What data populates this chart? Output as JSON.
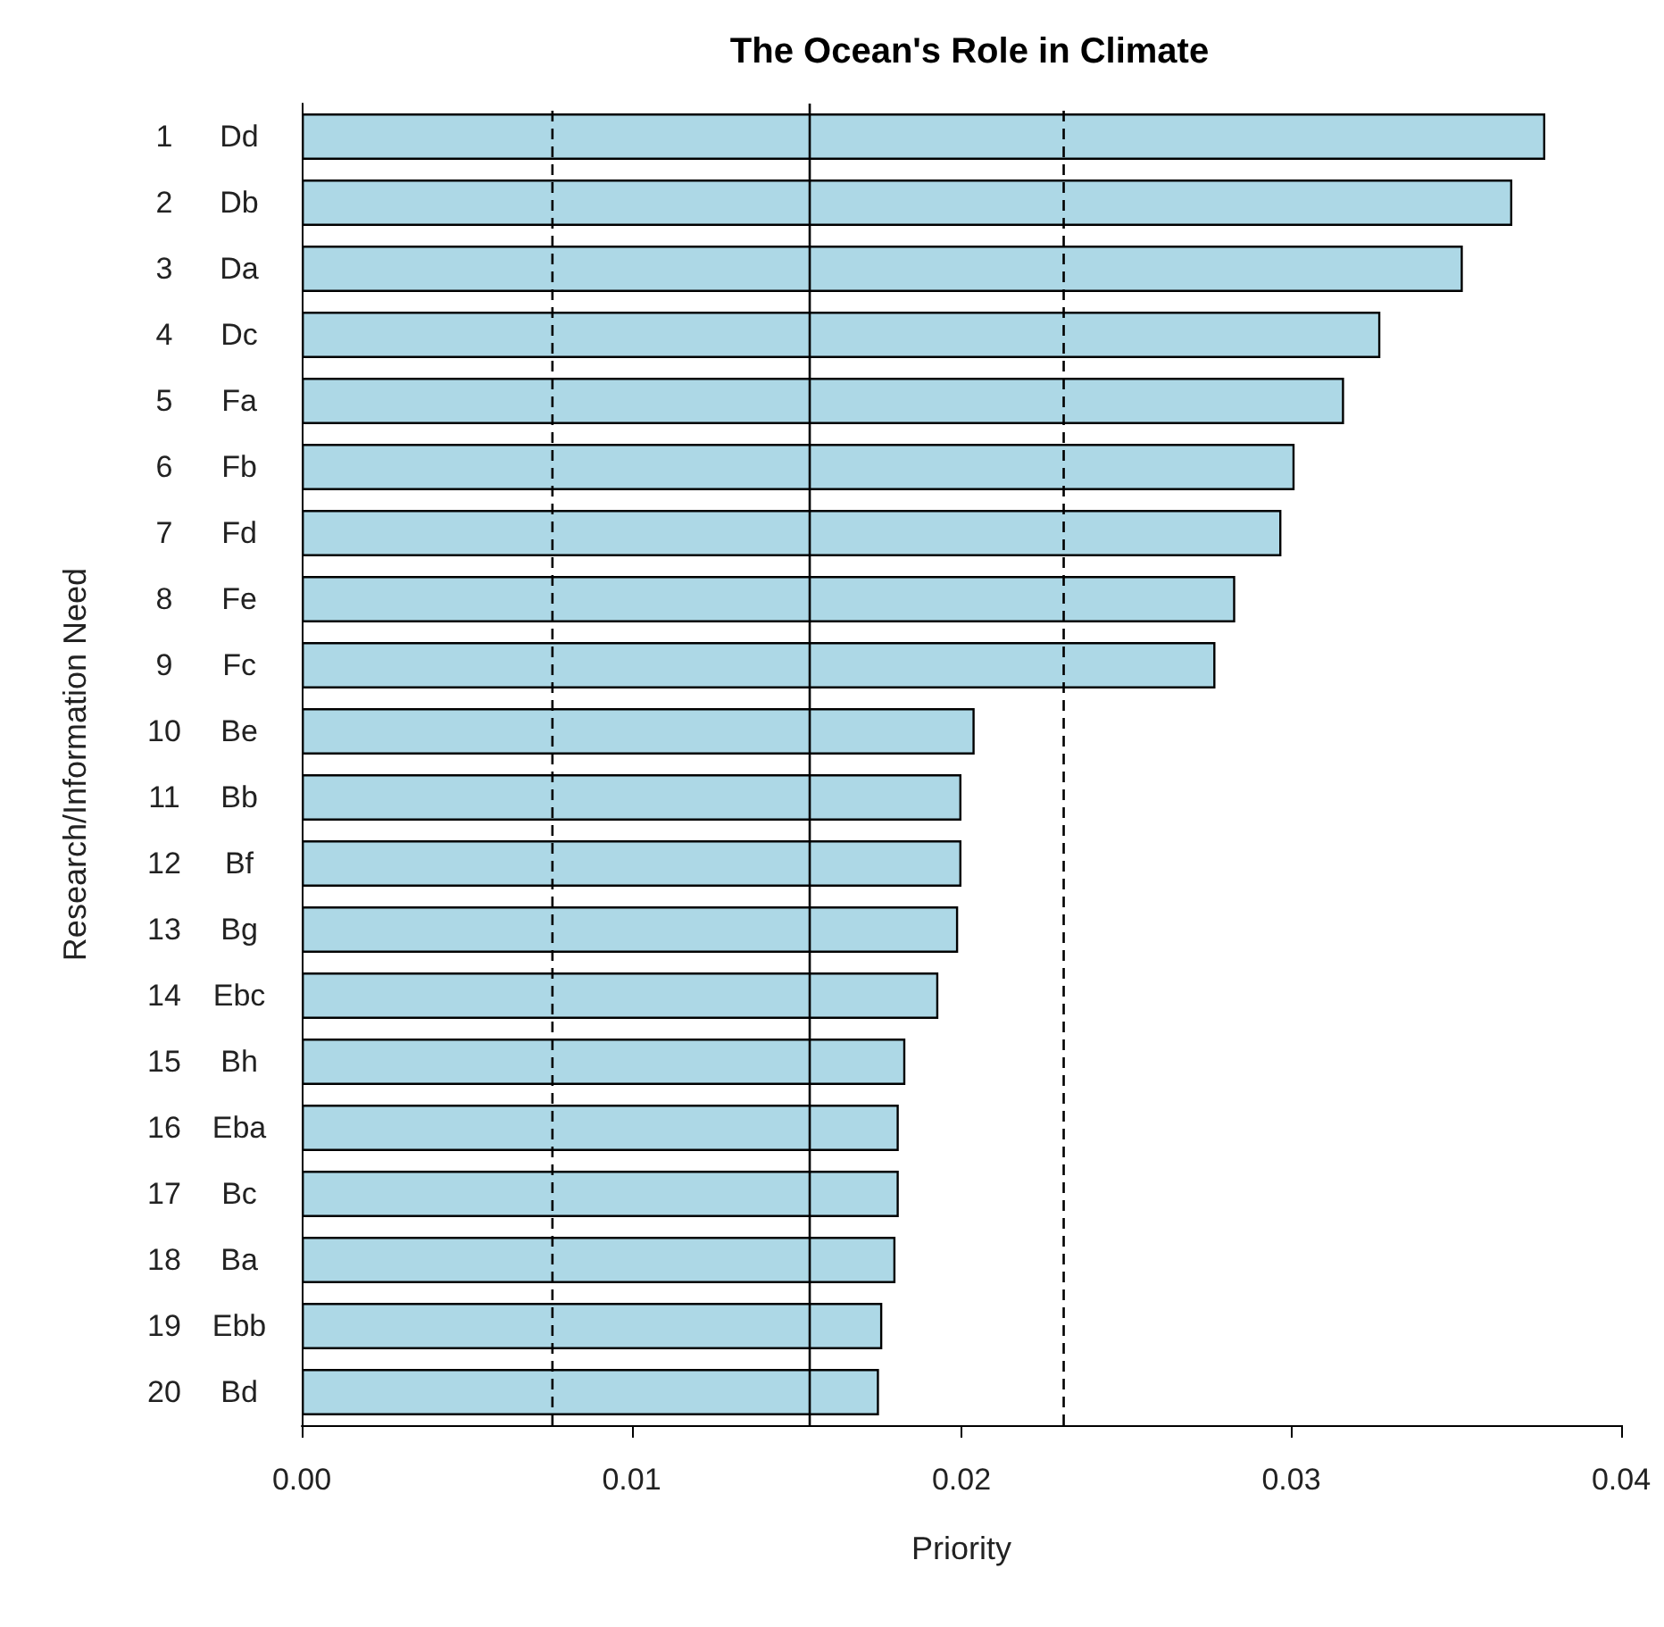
{
  "chart_data": {
    "type": "bar",
    "orientation": "horizontal",
    "title": "The Ocean's Role in Climate",
    "xlabel": "Priority",
    "ylabel": "Research/Information Need",
    "categories": [
      "1 Dd",
      "2 Db",
      "3 Da",
      "4 Dc",
      "5 Fa",
      "6 Fb",
      "7 Fd",
      "8 Fe",
      "9 Fc",
      "10 Be",
      "11 Bb",
      "12 Bf",
      "13 Bg",
      "14 Ebc",
      "15 Bh",
      "16 Eba",
      "17 Bc",
      "18 Ba",
      "19 Ebb",
      "20 Bd"
    ],
    "values": [
      0.0377,
      0.0367,
      0.0352,
      0.0327,
      0.0316,
      0.0301,
      0.0297,
      0.0283,
      0.0277,
      0.0204,
      0.02,
      0.02,
      0.0199,
      0.0193,
      0.0183,
      0.0181,
      0.0181,
      0.018,
      0.0176,
      0.0175
    ],
    "color": "#add8e6",
    "xlim": [
      0,
      0.04
    ],
    "xticks": [
      {
        "value": 0,
        "label": "0.00"
      },
      {
        "value": 0.01,
        "label": "0.01"
      },
      {
        "value": 0.02,
        "label": "0.02"
      },
      {
        "value": 0.03,
        "label": "0.03"
      },
      {
        "value": 0.04,
        "label": "0.04"
      }
    ],
    "ref_lines": [
      {
        "axis": "x",
        "value": 0.0076,
        "line_style": "dashed",
        "color": "#000000"
      },
      {
        "axis": "x",
        "value": 0.0154,
        "line_style": "solid",
        "color": "#000000"
      },
      {
        "axis": "x",
        "value": 0.0231,
        "line_style": "dashed",
        "color": "#000000"
      }
    ],
    "grid": false
  }
}
